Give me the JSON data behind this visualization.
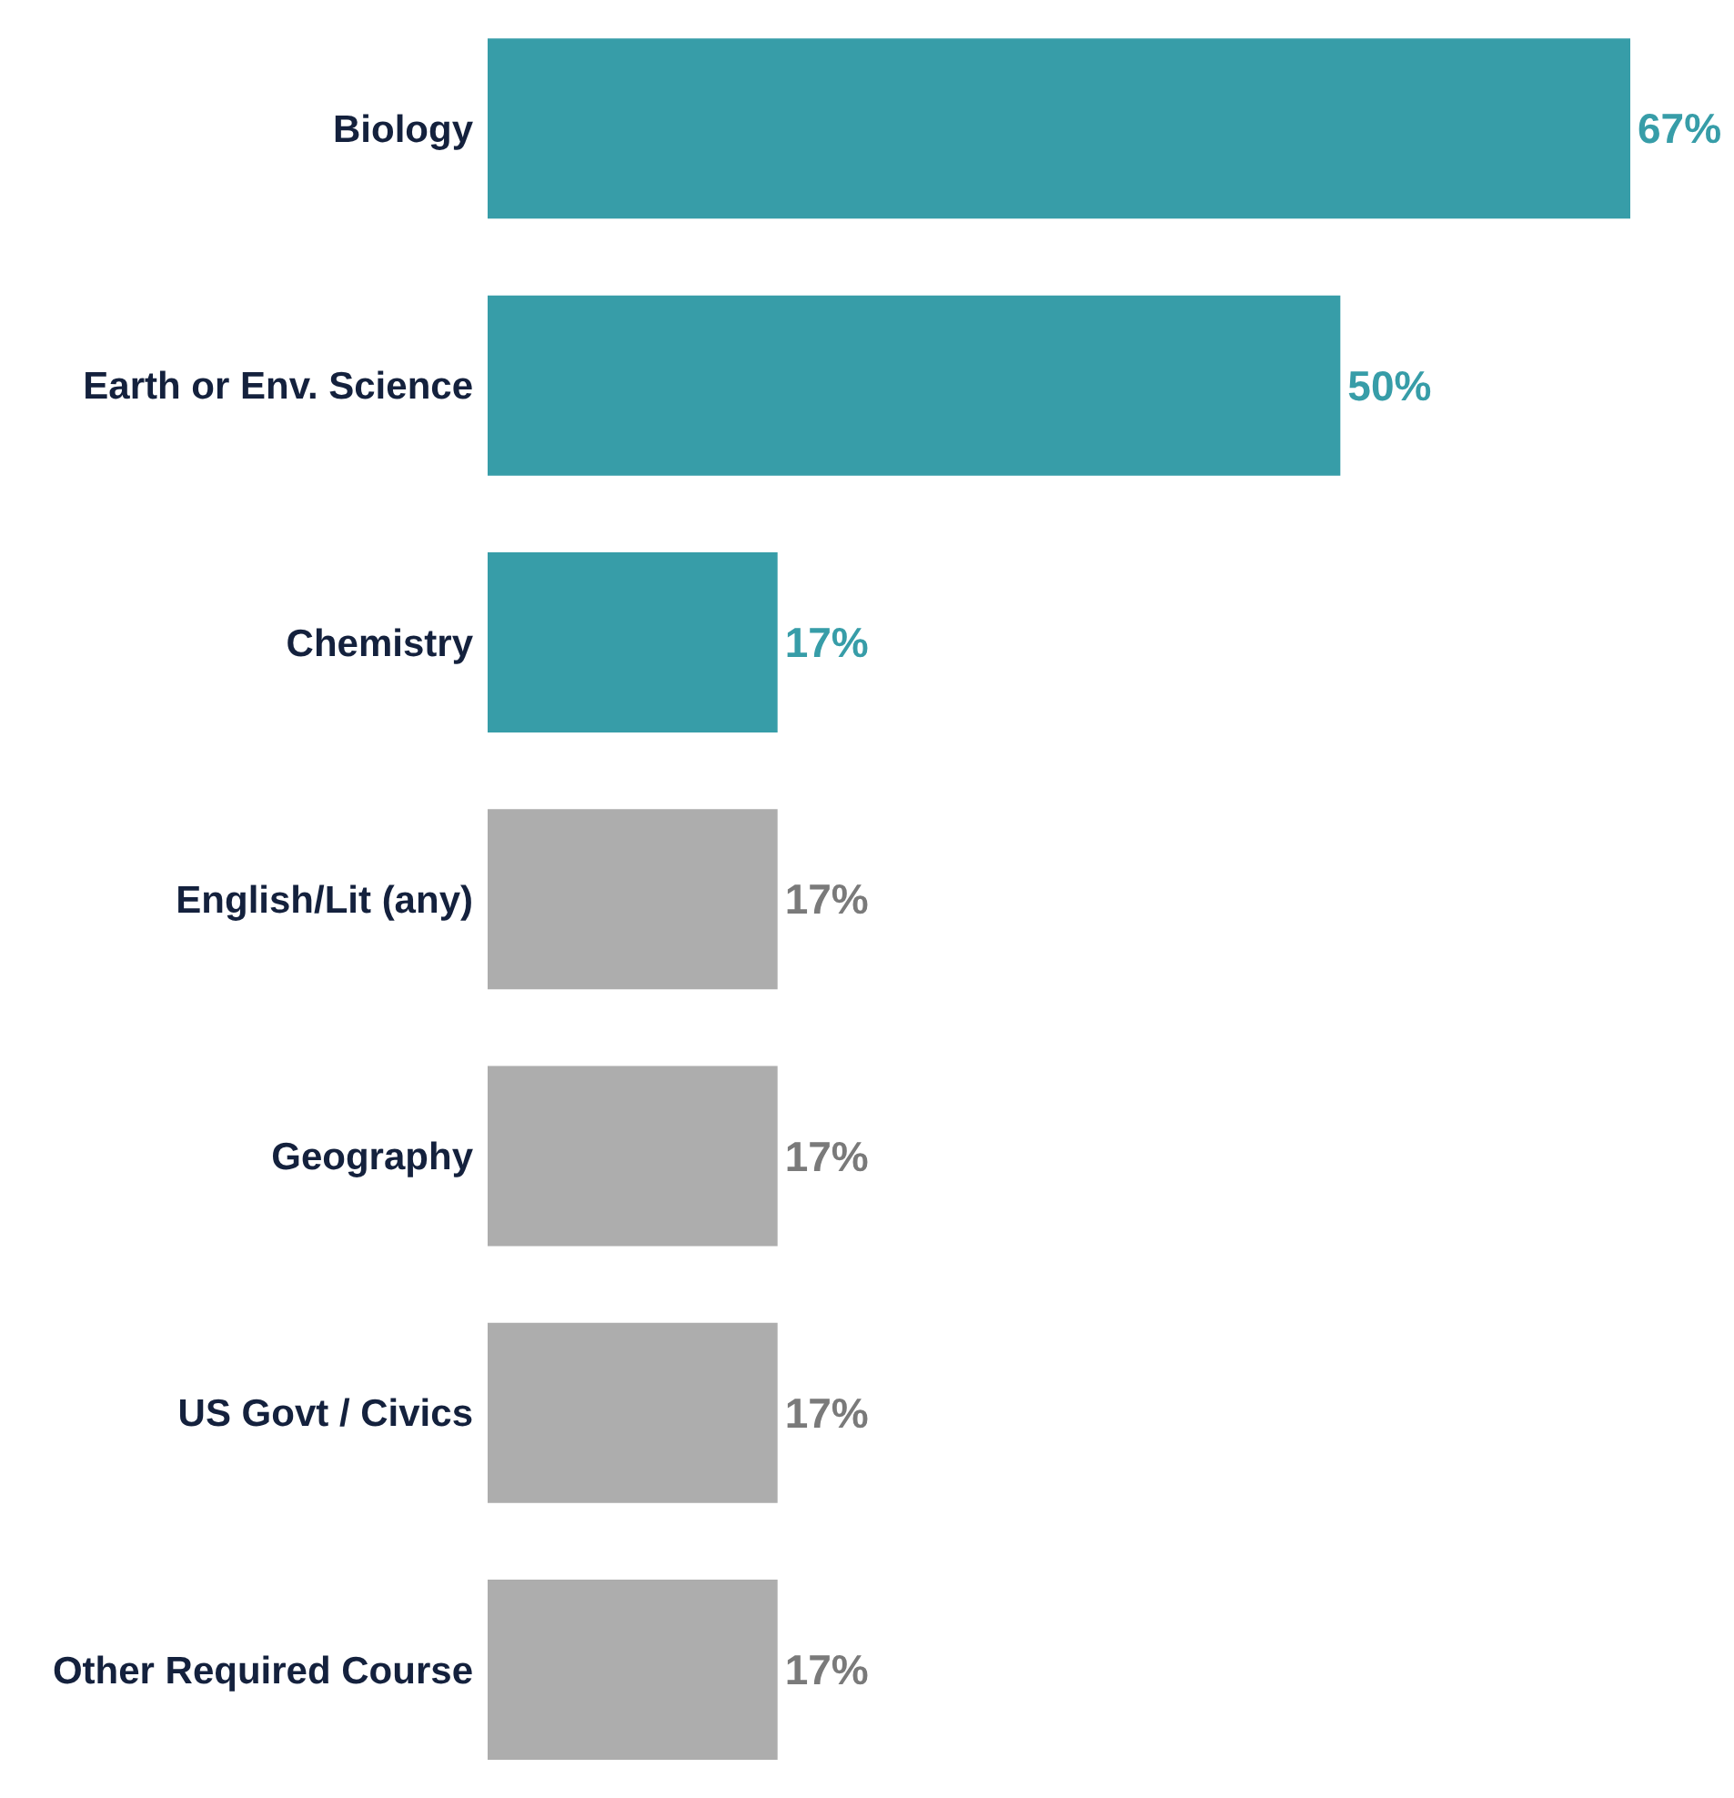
{
  "chart_data": {
    "type": "bar",
    "orientation": "horizontal",
    "categories": [
      "Biology",
      "Earth or Env. Science",
      "Chemistry",
      "English/Lit (any)",
      "Geography",
      "US Govt / Civics",
      "Other Required Course"
    ],
    "values": [
      67,
      50,
      17,
      17,
      17,
      17,
      17
    ],
    "colors": [
      "#379da8",
      "#379da8",
      "#379da8",
      "#adadad",
      "#adadad",
      "#adadad",
      "#adadad"
    ],
    "value_labels": [
      "67%",
      "50%",
      "17%",
      "17%",
      "17%",
      "17%",
      "17%"
    ],
    "grid": false,
    "legend": false
  }
}
